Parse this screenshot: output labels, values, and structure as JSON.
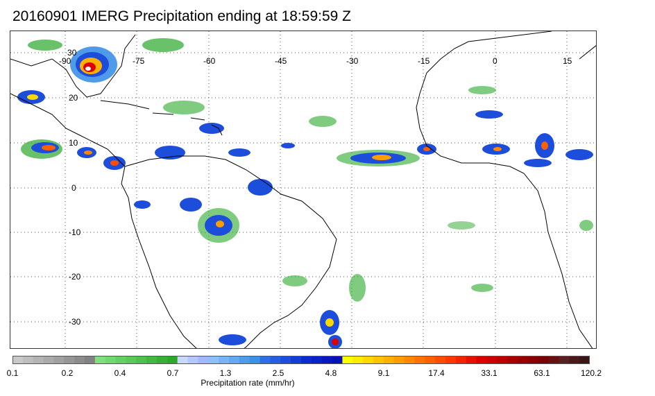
{
  "title": "20160901 IMERG Precipitation ending at 18:59:59 Z",
  "map": {
    "lon_ticks": [
      "-90",
      "-75",
      "-60",
      "-45",
      "-30",
      "-15",
      "0",
      "15"
    ],
    "lat_ticks": [
      "30",
      "20",
      "10",
      "0",
      "-10",
      "-20",
      "-30"
    ],
    "gridlines": "dotted",
    "land_outline_color": "#000000"
  },
  "colorbar": {
    "label": "Precipitation rate (mm/hr)",
    "tick_labels": [
      "0.1",
      "0.2",
      "0.4",
      "0.7",
      "1.3",
      "2.5",
      "4.8",
      "9.1",
      "17.4",
      "33.1",
      "63.1",
      "120.2"
    ],
    "colors": [
      "#c8c8c8",
      "#bebebe",
      "#b4b4b4",
      "#aaaaaa",
      "#a0a0a0",
      "#969696",
      "#8c8c8c",
      "#828282",
      "#7ee07e",
      "#72d872",
      "#66d066",
      "#5ac85a",
      "#4ec04e",
      "#42b842",
      "#36b036",
      "#2aa82a",
      "#c8d8ff",
      "#b4c8ff",
      "#a0b8ff",
      "#8cc0f8",
      "#78b4f4",
      "#64a8f0",
      "#509cec",
      "#3c90e8",
      "#2f6fe6",
      "#265ee0",
      "#1d4ddb",
      "#143cd6",
      "#0b2bd0",
      "#0a20c8",
      "#0818c0",
      "#0610b8",
      "#ffff00",
      "#ffec00",
      "#ffd800",
      "#ffc400",
      "#ffb000",
      "#ff9c00",
      "#ff8800",
      "#ff7400",
      "#ff6000",
      "#ff4c00",
      "#ff3800",
      "#f42400",
      "#e81000",
      "#dc0000",
      "#cc0000",
      "#bc0000",
      "#a80000",
      "#980000",
      "#880000",
      "#780000",
      "#681010",
      "#582020",
      "#4a1a1a",
      "#3c1414"
    ]
  }
}
